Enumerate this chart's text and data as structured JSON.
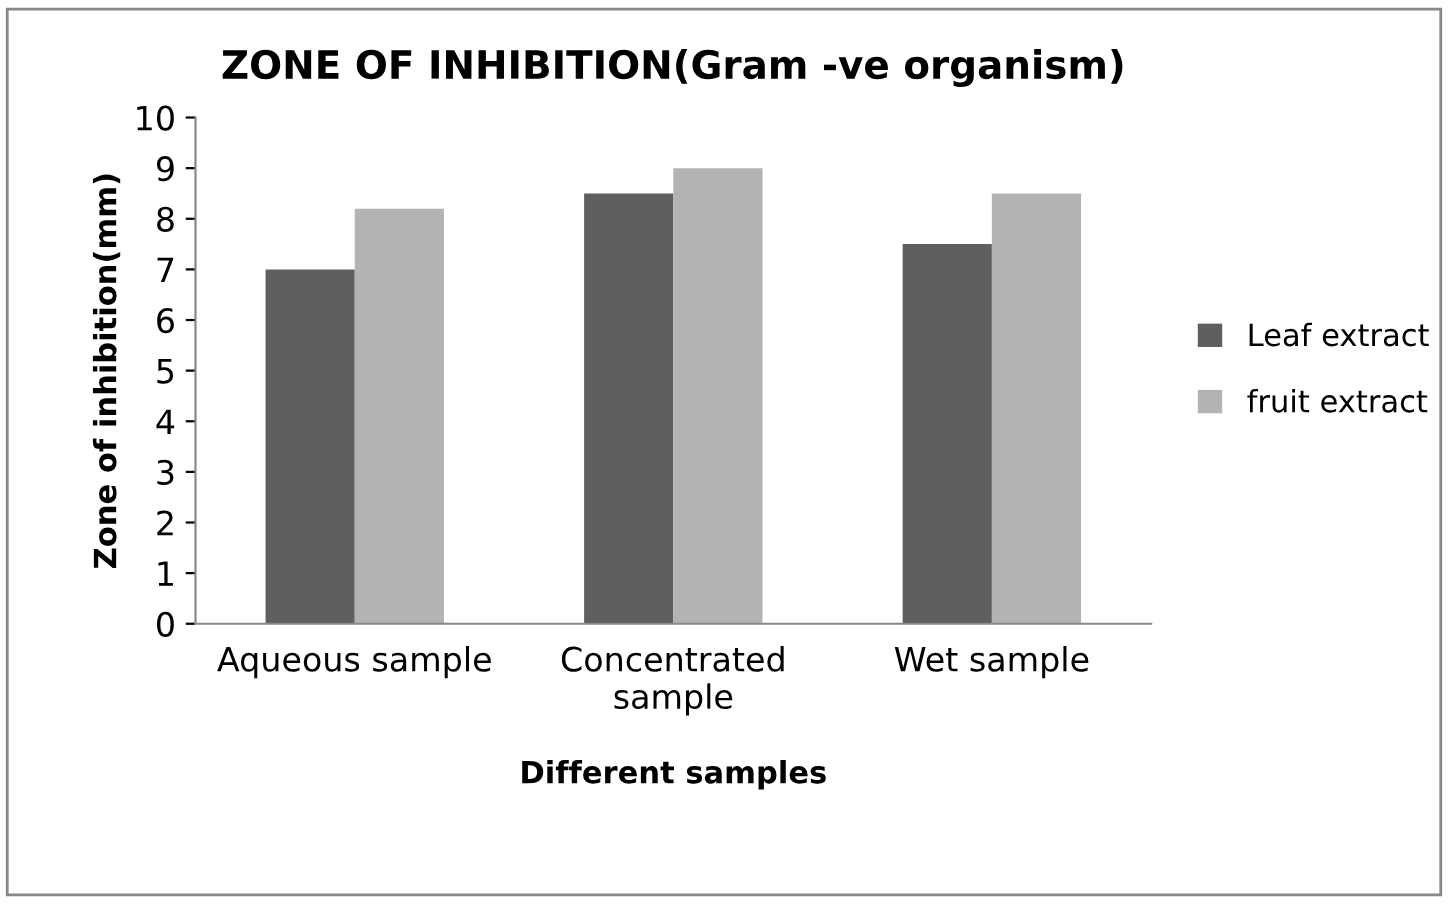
{
  "chart_data": {
    "type": "bar",
    "title": "ZONE OF INHIBITION(Gram -ve organism)",
    "xlabel": "Different samples",
    "ylabel": "Zone of inhibition(mm)",
    "categories": [
      "Aqueous sample",
      "Concentrated\nsample",
      "Wet sample"
    ],
    "series": [
      {
        "name": "Leaf extract",
        "color": "#5f5f5f",
        "values": [
          7.0,
          8.5,
          7.5
        ]
      },
      {
        "name": "fruit extract",
        "color": "#b3b3b3",
        "values": [
          8.2,
          9.0,
          8.5
        ]
      }
    ],
    "ylim": [
      0,
      10
    ],
    "yticks": [
      0,
      1,
      2,
      3,
      4,
      5,
      6,
      7,
      8,
      9,
      10
    ],
    "grid": false,
    "legend": "right"
  }
}
